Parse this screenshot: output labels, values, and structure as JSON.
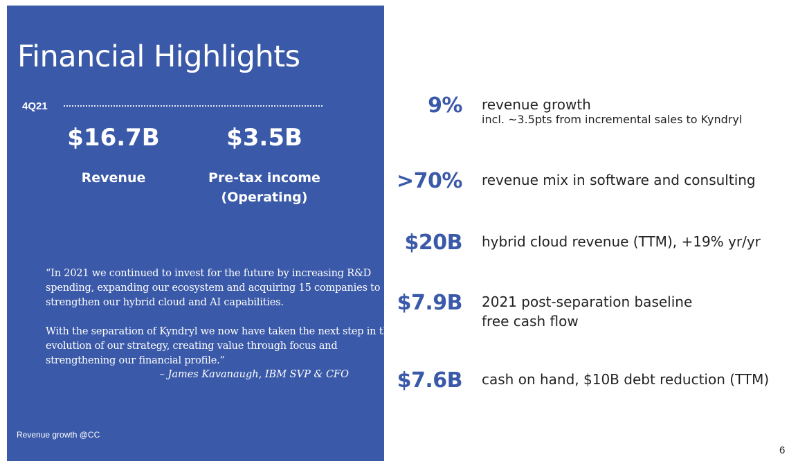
{
  "slide": {
    "title": "Financial Highlights",
    "period": "4Q21",
    "metrics": [
      {
        "value": "$16.7B",
        "label": "Revenue"
      },
      {
        "value": "$3.5B",
        "label": "Pre-tax income (Operating)"
      }
    ],
    "quote": {
      "paragraph_1": "“In 2021  we continued to invest for the future by increasing R&D spending, expanding our ecosystem and acquiring 15 companies to strengthen our hybrid cloud and AI capabilities.",
      "paragraph_2": "With the separation of Kyndryl we now have taken the next step in the evolution of our strategy, creating value through focus and strengthening our financial profile.”",
      "attribution": "– James Kavanaugh, IBM SVP & CFO"
    },
    "footnote": "Revenue growth @CC",
    "highlights": [
      {
        "value": "9%",
        "text": "revenue growth",
        "subtext": "incl. ~3.5pts from incremental sales to Kyndryl"
      },
      {
        "value": ">70%",
        "text": "revenue mix in software and consulting"
      },
      {
        "value": "$20B",
        "text": "hybrid cloud revenue (TTM), +19% yr/yr"
      },
      {
        "value": "$7.9B",
        "text": "2021 post-separation baseline",
        "text_2": "free cash flow"
      },
      {
        "value": "$7.6B",
        "text": "cash on hand, $10B debt reduction (TTM)"
      }
    ],
    "page_number": "6",
    "colors": {
      "panel": "#3a59a8",
      "accent": "#3a59a8",
      "text": "#222222",
      "background": "#ffffff"
    }
  }
}
